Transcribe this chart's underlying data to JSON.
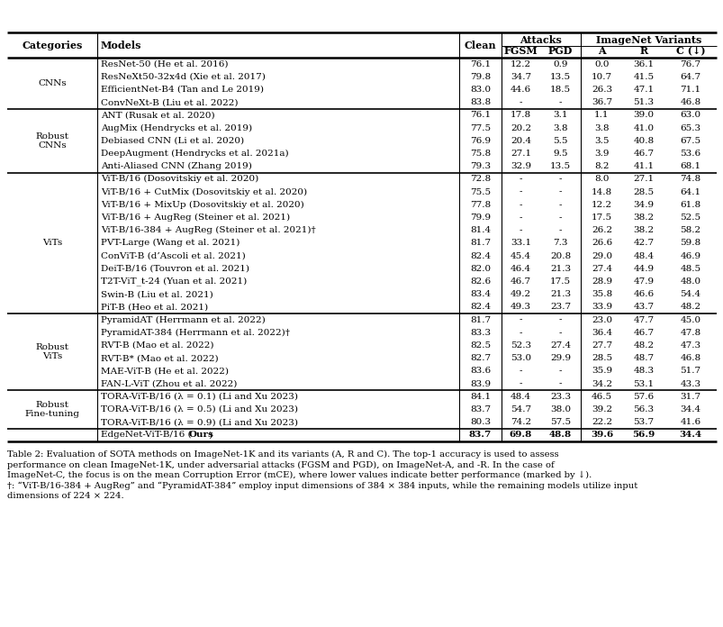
{
  "caption_lines": [
    "Table 2: Evaluation of SOTA methods on ImageNet-1K and its variants (A, R and C). The top-1 accuracy is used to assess",
    "performance on clean ImageNet-1K, under adversarial attacks (FGSM and PGD), on ImageNet-A, and -R. In the case of",
    "ImageNet-C, the focus is on the mean Corruption Error (mCE), where lower values indicate better performance (marked by ↓).",
    "†: “ViT-B/16-384 + AugReg” and “PyramidAT-384” employ input dimensions of 384 × 384 inputs, while the remaining models utilize input",
    "dimensions of 224 × 224."
  ],
  "rows": [
    [
      "CNNs",
      "ResNet-50 (He et al. 2016)",
      "76.1",
      "12.2",
      "0.9",
      "0.0",
      "36.1",
      "76.7",
      false
    ],
    [
      "CNNs",
      "ResNeXt50-32x4d (Xie et al. 2017)",
      "79.8",
      "34.7",
      "13.5",
      "10.7",
      "41.5",
      "64.7",
      false
    ],
    [
      "CNNs",
      "EfficientNet-B4 (Tan and Le 2019)",
      "83.0",
      "44.6",
      "18.5",
      "26.3",
      "47.1",
      "71.1",
      false
    ],
    [
      "CNNs",
      "ConvNeXt-B (Liu et al. 2022)",
      "83.8",
      "-",
      "-",
      "36.7",
      "51.3",
      "46.8",
      false
    ],
    [
      "Robust\nCNNs",
      "ANT (Rusak et al. 2020)",
      "76.1",
      "17.8",
      "3.1",
      "1.1",
      "39.0",
      "63.0",
      false
    ],
    [
      "Robust\nCNNs",
      "AugMix (Hendrycks et al. 2019)",
      "77.5",
      "20.2",
      "3.8",
      "3.8",
      "41.0",
      "65.3",
      false
    ],
    [
      "Robust\nCNNs",
      "Debiased CNN (Li et al. 2020)",
      "76.9",
      "20.4",
      "5.5",
      "3.5",
      "40.8",
      "67.5",
      false
    ],
    [
      "Robust\nCNNs",
      "DeepAugment (Hendrycks et al. 2021a)",
      "75.8",
      "27.1",
      "9.5",
      "3.9",
      "46.7",
      "53.6",
      false
    ],
    [
      "Robust\nCNNs",
      "Anti-Aliased CNN (Zhang 2019)",
      "79.3",
      "32.9",
      "13.5",
      "8.2",
      "41.1",
      "68.1",
      false
    ],
    [
      "ViTs",
      "ViT-B/16 (Dosovitskiy et al. 2020)",
      "72.8",
      "-",
      "-",
      "8.0",
      "27.1",
      "74.8",
      false
    ],
    [
      "ViTs",
      "ViT-B/16 + CutMix (Dosovitskiy et al. 2020)",
      "75.5",
      "-",
      "-",
      "14.8",
      "28.5",
      "64.1",
      false
    ],
    [
      "ViTs",
      "ViT-B/16 + MixUp (Dosovitskiy et al. 2020)",
      "77.8",
      "-",
      "-",
      "12.2",
      "34.9",
      "61.8",
      false
    ],
    [
      "ViTs",
      "ViT-B/16 + AugReg (Steiner et al. 2021)",
      "79.9",
      "-",
      "-",
      "17.5",
      "38.2",
      "52.5",
      false
    ],
    [
      "ViTs",
      "ViT-B/16-384 + AugReg (Steiner et al. 2021)†",
      "81.4",
      "-",
      "-",
      "26.2",
      "38.2",
      "58.2",
      false
    ],
    [
      "ViTs",
      "PVT-Large (Wang et al. 2021)",
      "81.7",
      "33.1",
      "7.3",
      "26.6",
      "42.7",
      "59.8",
      false
    ],
    [
      "ViTs",
      "ConViT-B (d’Ascoli et al. 2021)",
      "82.4",
      "45.4",
      "20.8",
      "29.0",
      "48.4",
      "46.9",
      false
    ],
    [
      "ViTs",
      "DeiT-B/16 (Touvron et al. 2021)",
      "82.0",
      "46.4",
      "21.3",
      "27.4",
      "44.9",
      "48.5",
      false
    ],
    [
      "ViTs",
      "T2T-ViT_t-24 (Yuan et al. 2021)",
      "82.6",
      "46.7",
      "17.5",
      "28.9",
      "47.9",
      "48.0",
      false
    ],
    [
      "ViTs",
      "Swin-B (Liu et al. 2021)",
      "83.4",
      "49.2",
      "21.3",
      "35.8",
      "46.6",
      "54.4",
      false
    ],
    [
      "ViTs",
      "PiT-B (Heo et al. 2021)",
      "82.4",
      "49.3",
      "23.7",
      "33.9",
      "43.7",
      "48.2",
      false
    ],
    [
      "Robust\nViTs",
      "PyramidAT (Herrmann et al. 2022)",
      "81.7",
      "-",
      "-",
      "23.0",
      "47.7",
      "45.0",
      false
    ],
    [
      "Robust\nViTs",
      "PyramidAT-384 (Herrmann et al. 2022)†",
      "83.3",
      "-",
      "-",
      "36.4",
      "46.7",
      "47.8",
      false
    ],
    [
      "Robust\nViTs",
      "RVT-B (Mao et al. 2022)",
      "82.5",
      "52.3",
      "27.4",
      "27.7",
      "48.2",
      "47.3",
      false
    ],
    [
      "Robust\nViTs",
      "RVT-B* (Mao et al. 2022)",
      "82.7",
      "53.0",
      "29.9",
      "28.5",
      "48.7",
      "46.8",
      false
    ],
    [
      "Robust\nViTs",
      "MAE-ViT-B (He et al. 2022)",
      "83.6",
      "-",
      "-",
      "35.9",
      "48.3",
      "51.7",
      false
    ],
    [
      "Robust\nViTs",
      "FAN-L-ViT (Zhou et al. 2022)",
      "83.9",
      "-",
      "-",
      "34.2",
      "53.1",
      "43.3",
      false
    ],
    [
      "Robust\nFine-tuning",
      "TORA-ViT-B/16 (λ = 0.1) (Li and Xu 2023)",
      "84.1",
      "48.4",
      "23.3",
      "46.5",
      "57.6",
      "31.7",
      false
    ],
    [
      "Robust\nFine-tuning",
      "TORA-ViT-B/16 (λ = 0.5) (Li and Xu 2023)",
      "83.7",
      "54.7",
      "38.0",
      "39.2",
      "56.3",
      "34.4",
      false
    ],
    [
      "Robust\nFine-tuning",
      "TORA-ViT-B/16 (λ = 0.9) (Li and Xu 2023)",
      "80.3",
      "74.2",
      "57.5",
      "22.2",
      "53.7",
      "41.6",
      false
    ],
    [
      "",
      "EdgeNet-ViT-B/16 (Ours)",
      "83.7",
      "69.8",
      "48.8",
      "39.6",
      "56.9",
      "34.4",
      true
    ]
  ],
  "bg_color": "#ffffff",
  "text_color": "#000000"
}
